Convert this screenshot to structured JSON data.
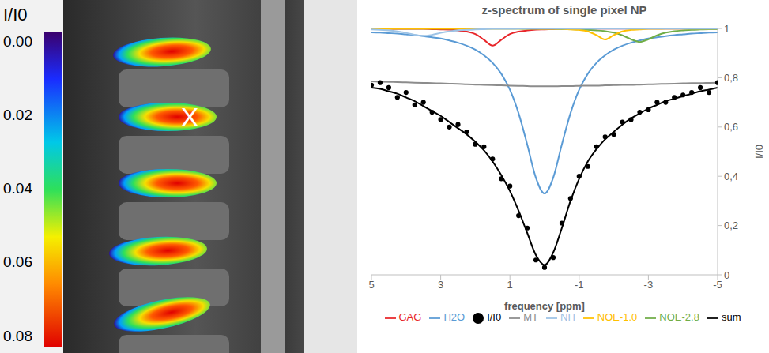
{
  "image": {
    "colorbar": {
      "title": "I/I0",
      "range": [
        0,
        0.08
      ],
      "ticks": [
        {
          "value": 0,
          "label": "0.00"
        },
        {
          "value": 0.02,
          "label": "0.02"
        },
        {
          "value": 0.04,
          "label": "0.04"
        },
        {
          "value": 0.06,
          "label": "0.06"
        },
        {
          "value": 0.08,
          "label": "0.08"
        }
      ]
    },
    "marker": "X"
  },
  "chart_data": {
    "type": "line",
    "title": "z-spectrum of single pixel NP",
    "x_label": "frequency [ppm]",
    "y_label": "I/I0",
    "legend": "bottom",
    "grid": false,
    "xlim": [
      5,
      -5
    ],
    "xticks": [
      5,
      3,
      1,
      -1,
      -3,
      -5
    ],
    "ylim": [
      0,
      1
    ],
    "yticks": [
      0,
      {
        "value": 0.2,
        "label": "0,2"
      },
      {
        "value": 0.4,
        "label": "0,4"
      },
      {
        "value": 0.6,
        "label": "0,6"
      },
      {
        "value": 0.8,
        "label": "0,8"
      },
      1
    ],
    "x": [
      5,
      4.75,
      4.5,
      4.25,
      4,
      3.75,
      3.5,
      3.25,
      3,
      2.75,
      2.5,
      2.25,
      2,
      1.75,
      1.5,
      1.25,
      1,
      0.75,
      0.5,
      0.25,
      0,
      -0.25,
      -0.5,
      -0.75,
      -1,
      -1.25,
      -1.5,
      -1.75,
      -2,
      -2.25,
      -2.5,
      -2.75,
      -3,
      -3.25,
      -3.5,
      -3.75,
      -4,
      -4.25,
      -4.5,
      -4.75,
      -5
    ],
    "series": [
      {
        "name": "I/I0",
        "type": "scatter",
        "marker": "circle",
        "color": "#000000",
        "values": [
          0.77,
          0.78,
          0.76,
          0.72,
          0.74,
          0.69,
          0.7,
          0.66,
          0.63,
          0.6,
          0.61,
          0.58,
          0.53,
          0.52,
          0.47,
          0.39,
          0.36,
          0.24,
          0.19,
          0.06,
          0.03,
          0.07,
          0.21,
          0.31,
          0.4,
          0.44,
          0.52,
          0.56,
          0.57,
          0.62,
          0.63,
          0.66,
          0.67,
          0.7,
          0.7,
          0.72,
          0.73,
          0.74,
          0.76,
          0.74,
          0.78
        ]
      },
      {
        "name": "H2O",
        "type": "line",
        "color": "#5b9bd5",
        "values": [
          0.984,
          0.983,
          0.981,
          0.979,
          0.976,
          0.973,
          0.969,
          0.964,
          0.959,
          0.951,
          0.942,
          0.93,
          0.914,
          0.891,
          0.86,
          0.816,
          0.751,
          0.656,
          0.529,
          0.394,
          0.33,
          0.394,
          0.529,
          0.656,
          0.751,
          0.816,
          0.86,
          0.891,
          0.914,
          0.93,
          0.942,
          0.951,
          0.959,
          0.964,
          0.969,
          0.973,
          0.976,
          0.979,
          0.981,
          0.983,
          0.984
        ]
      },
      {
        "name": "GAG",
        "type": "line",
        "color": "#e8262a",
        "values": [
          0.999,
          0.999,
          0.999,
          0.998,
          0.998,
          0.998,
          0.998,
          0.997,
          0.996,
          0.995,
          0.992,
          0.987,
          0.977,
          0.954,
          0.93,
          0.954,
          0.977,
          0.987,
          0.992,
          0.995,
          0.996,
          0.997,
          0.998,
          0.998,
          0.998,
          0.999,
          0.999,
          0.999,
          0.999,
          0.999,
          0.999,
          0.999,
          0.999,
          0.999,
          0.999,
          0.999,
          0.999,
          0.999,
          0.999,
          0.999,
          0.999
        ]
      },
      {
        "name": "MT",
        "type": "line",
        "color": "#8c8c8c",
        "values": [
          0.785,
          0.784,
          0.783,
          0.782,
          0.781,
          0.78,
          0.779,
          0.778,
          0.777,
          0.776,
          0.775,
          0.773,
          0.772,
          0.771,
          0.77,
          0.769,
          0.768,
          0.767,
          0.766,
          0.765,
          0.765,
          0.765,
          0.766,
          0.766,
          0.767,
          0.768,
          0.768,
          0.769,
          0.77,
          0.771,
          0.771,
          0.772,
          0.773,
          0.774,
          0.775,
          0.776,
          0.777,
          0.778,
          0.778,
          0.779,
          0.78
        ]
      },
      {
        "name": "NOE-2.8",
        "type": "line",
        "color": "#70ad47",
        "values": [
          0.999,
          0.999,
          0.999,
          0.999,
          0.999,
          0.999,
          0.999,
          0.999,
          0.999,
          0.999,
          0.999,
          0.999,
          0.999,
          0.999,
          0.999,
          0.999,
          0.999,
          0.999,
          0.998,
          0.998,
          0.998,
          0.998,
          0.997,
          0.997,
          0.996,
          0.994,
          0.992,
          0.989,
          0.983,
          0.972,
          0.956,
          0.945,
          0.956,
          0.972,
          0.983,
          0.989,
          0.992,
          0.994,
          0.996,
          0.997,
          0.997
        ]
      },
      {
        "name": "NOE-1.0",
        "type": "line",
        "color": "#ffc000",
        "values": [
          0.999,
          0.999,
          0.999,
          0.999,
          0.999,
          0.999,
          0.999,
          0.999,
          0.999,
          0.999,
          0.999,
          0.999,
          0.999,
          0.999,
          0.999,
          0.999,
          0.999,
          0.999,
          0.999,
          0.999,
          0.998,
          0.998,
          0.998,
          0.996,
          0.994,
          0.988,
          0.973,
          0.955,
          0.973,
          0.988,
          0.994,
          0.996,
          0.998,
          0.998,
          0.999,
          0.999,
          0.999,
          0.999,
          0.999,
          0.999,
          0.999
        ]
      },
      {
        "name": "NH",
        "type": "line",
        "color": "#9dc3e6",
        "values": [
          0.996,
          0.994,
          0.992,
          0.988,
          0.982,
          0.974,
          0.97,
          0.974,
          0.982,
          0.988,
          0.992,
          0.994,
          0.996,
          0.997,
          0.998,
          0.998,
          0.998,
          0.999,
          0.999,
          0.999,
          0.999,
          0.999,
          0.999,
          0.999,
          0.999,
          0.999,
          0.999,
          0.999,
          0.999,
          0.999,
          0.999,
          0.999,
          0.999,
          0.999,
          0.999,
          0.999,
          0.999,
          0.999,
          0.999,
          0.999,
          0.999
        ]
      },
      {
        "name": "sum",
        "type": "line",
        "color": "#000000",
        "values": [
          0.76,
          0.755,
          0.745,
          0.735,
          0.72,
          0.705,
          0.685,
          0.665,
          0.645,
          0.62,
          0.595,
          0.57,
          0.54,
          0.505,
          0.46,
          0.405,
          0.34,
          0.26,
          0.17,
          0.08,
          0.04,
          0.09,
          0.19,
          0.3,
          0.39,
          0.46,
          0.51,
          0.55,
          0.58,
          0.61,
          0.635,
          0.655,
          0.675,
          0.69,
          0.705,
          0.715,
          0.725,
          0.735,
          0.745,
          0.752,
          0.76
        ]
      }
    ]
  }
}
